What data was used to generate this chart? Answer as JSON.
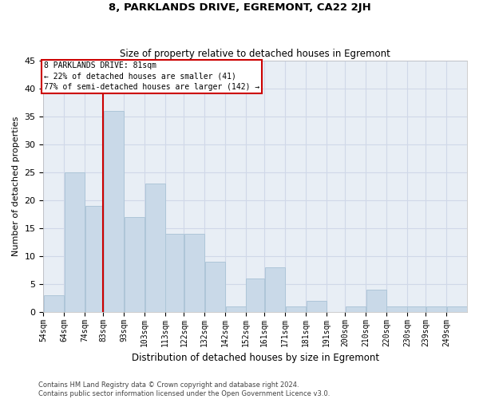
{
  "title": "8, PARKLANDS DRIVE, EGREMONT, CA22 2JH",
  "subtitle": "Size of property relative to detached houses in Egremont",
  "xlabel": "Distribution of detached houses by size in Egremont",
  "ylabel": "Number of detached properties",
  "categories": [
    "54sqm",
    "64sqm",
    "74sqm",
    "83sqm",
    "93sqm",
    "103sqm",
    "113sqm",
    "122sqm",
    "132sqm",
    "142sqm",
    "152sqm",
    "161sqm",
    "171sqm",
    "181sqm",
    "191sqm",
    "200sqm",
    "210sqm",
    "220sqm",
    "230sqm",
    "239sqm",
    "249sqm"
  ],
  "values": [
    3,
    25,
    19,
    36,
    17,
    23,
    14,
    14,
    9,
    1,
    6,
    8,
    1,
    2,
    0,
    1,
    4,
    1,
    1,
    1,
    1
  ],
  "bar_color": "#c9d9e8",
  "bar_edge_color": "#aec6d8",
  "grid_color": "#d0d8e8",
  "background_color": "#e8eef5",
  "annotation_line_color": "#cc0000",
  "annotation_box_text": "8 PARKLANDS DRIVE: 81sqm\n← 22% of detached houses are smaller (41)\n77% of semi-detached houses are larger (142) →",
  "footer_line1": "Contains HM Land Registry data © Crown copyright and database right 2024.",
  "footer_line2": "Contains public sector information licensed under the Open Government Licence v3.0.",
  "ylim": [
    0,
    45
  ],
  "yticks": [
    0,
    5,
    10,
    15,
    20,
    25,
    30,
    35,
    40,
    45
  ]
}
